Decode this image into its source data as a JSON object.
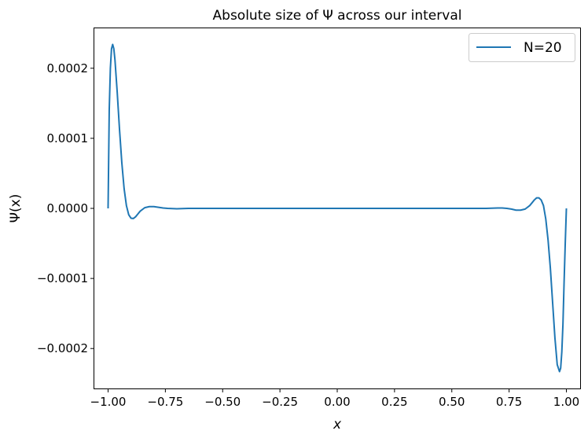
{
  "chart_data": {
    "type": "line",
    "title": "Absolute size of Ψ across our interval",
    "xlabel": "x",
    "ylabel": "Ψ(x)",
    "xlim": [
      -1.06,
      1.06
    ],
    "ylim": [
      -0.000257,
      0.000257
    ],
    "x_ticks": [
      -1.0,
      -0.75,
      -0.5,
      -0.25,
      0.0,
      0.25,
      0.5,
      0.75,
      1.0
    ],
    "x_tick_labels": [
      "−1.00",
      "−0.75",
      "−0.50",
      "−0.25",
      "0.00",
      "0.25",
      "0.50",
      "0.75",
      "1.00"
    ],
    "y_ticks": [
      0.0002,
      0.0001,
      0.0,
      -0.0001,
      -0.0002
    ],
    "y_tick_labels": [
      "0.0002",
      "0.0001",
      "0.0000",
      "−0.0001",
      "−0.0002"
    ],
    "grid": false,
    "legend_position": "top-right",
    "series": [
      {
        "name": "N=20",
        "color": "#1f77b4",
        "x": [
          -1.0,
          -0.995,
          -0.99,
          -0.985,
          -0.98,
          -0.975,
          -0.97,
          -0.96,
          -0.95,
          -0.94,
          -0.93,
          -0.92,
          -0.91,
          -0.9,
          -0.89,
          -0.88,
          -0.87,
          -0.86,
          -0.84,
          -0.82,
          -0.8,
          -0.78,
          -0.76,
          -0.74,
          -0.7,
          -0.65,
          -0.6,
          -0.5,
          -0.4,
          -0.2,
          0.0,
          0.2,
          0.4,
          0.5,
          0.6,
          0.65,
          0.7,
          0.72,
          0.74,
          0.76,
          0.78,
          0.8,
          0.82,
          0.84,
          0.86,
          0.87,
          0.88,
          0.89,
          0.9,
          0.91,
          0.92,
          0.93,
          0.94,
          0.95,
          0.96,
          0.97,
          0.975,
          0.98,
          0.985,
          0.99,
          0.995,
          1.0
        ],
        "y": [
          0.0,
          0.00014,
          0.0002,
          0.000228,
          0.000234,
          0.000228,
          0.000212,
          0.000165,
          0.000112,
          6.5e-05,
          2.8e-05,
          4e-06,
          -9e-06,
          -1.4e-05,
          -1.45e-05,
          -1.2e-05,
          -8e-06,
          -4e-06,
          1e-06,
          2.5e-06,
          2.5e-06,
          1.5e-06,
          5e-07,
          0.0,
          -5e-07,
          0.0,
          0.0,
          0.0,
          0.0,
          0.0,
          0.0,
          0.0,
          0.0,
          0.0,
          0.0,
          0.0,
          5e-07,
          5e-07,
          0.0,
          -1e-06,
          -2.5e-06,
          -2.5e-06,
          -1e-06,
          4e-06,
          1.2e-05,
          1.5e-05,
          1.5e-05,
          1.2e-05,
          4e-06,
          -1.5e-05,
          -4.5e-05,
          -8.5e-05,
          -0.000135,
          -0.000185,
          -0.000223,
          -0.000233,
          -0.000228,
          -0.000205,
          -0.000165,
          -0.000105,
          -5e-05,
          0.0
        ]
      }
    ]
  }
}
